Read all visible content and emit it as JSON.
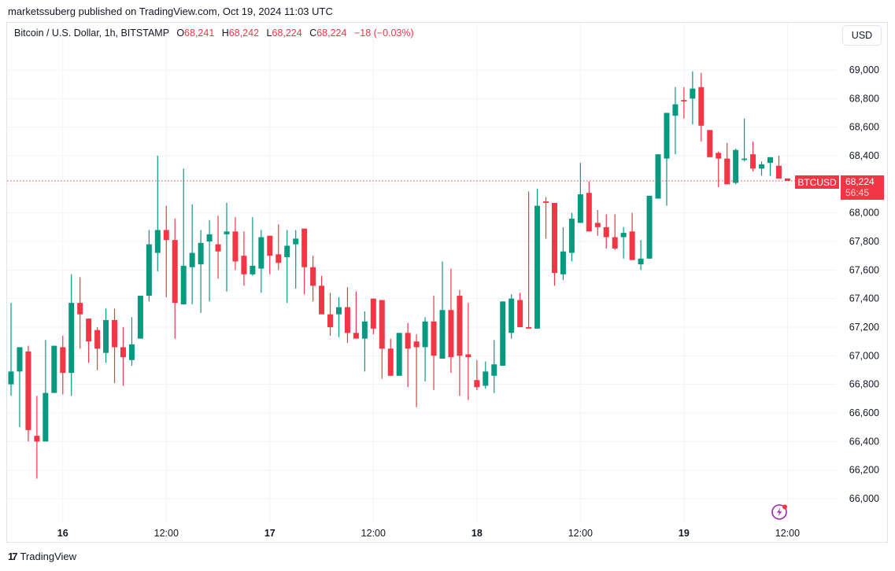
{
  "header": {
    "published": "marketssuberg published on TradingView.com, Oct 19, 2024 11:03 UTC"
  },
  "legend": {
    "symbol": "Bitcoin / U.S. Dollar, 1h, BITSTAMP",
    "o_label": "O",
    "o": "68,241",
    "h_label": "H",
    "h": "68,242",
    "l_label": "L",
    "l": "68,224",
    "c_label": "C",
    "c": "68,224",
    "change": "−18 (−0.03%)"
  },
  "currency_button": "USD",
  "last_price": {
    "symbol_tag": "BTCUSD",
    "price": "68,224",
    "countdown": "56:45"
  },
  "footer": {
    "brand": "TradingView",
    "logo_glyph": "17"
  },
  "colors": {
    "up": "#089981",
    "down": "#f23645",
    "grid": "#f0f3fa",
    "last_line": "#f23645",
    "events_icon": "#9c27b0"
  },
  "chart_data": {
    "type": "candlestick",
    "title": "Bitcoin / U.S. Dollar, 1h, BITSTAMP",
    "xlabel": "",
    "ylabel": "USD",
    "ylim": [
      65800,
      69100
    ],
    "y_ticks": [
      "69,000",
      "68,800",
      "68,600",
      "68,400",
      "68,200",
      "68,000",
      "67,800",
      "67,600",
      "67,400",
      "67,200",
      "67,000",
      "66,800",
      "66,600",
      "66,400",
      "66,200",
      "66,000"
    ],
    "x_ticks": [
      {
        "label": "16",
        "bold": true,
        "index": 6
      },
      {
        "label": "12:00",
        "bold": false,
        "index": 18
      },
      {
        "label": "17",
        "bold": true,
        "index": 30
      },
      {
        "label": "12:00",
        "bold": false,
        "index": 42
      },
      {
        "label": "18",
        "bold": true,
        "index": 54
      },
      {
        "label": "12:00",
        "bold": false,
        "index": 66
      },
      {
        "label": "19",
        "bold": true,
        "index": 78
      },
      {
        "label": "12:00",
        "bold": false,
        "index": 90
      }
    ],
    "grid": true,
    "last_price": 68224,
    "ohlc_columns": [
      "open",
      "high",
      "low",
      "close"
    ],
    "candles": [
      [
        66800,
        67370,
        66720,
        66890
      ],
      [
        66890,
        67060,
        66500,
        67060
      ],
      [
        67030,
        67070,
        66400,
        66480
      ],
      [
        66440,
        66720,
        66140,
        66400
      ],
      [
        66400,
        67110,
        66400,
        66740
      ],
      [
        66740,
        67070,
        66750,
        67070
      ],
      [
        67060,
        67140,
        66730,
        66880
      ],
      [
        66880,
        67570,
        66720,
        67370
      ],
      [
        67370,
        67550,
        67050,
        67290
      ],
      [
        67260,
        67230,
        66950,
        67100
      ],
      [
        67180,
        67200,
        66900,
        67050
      ],
      [
        67020,
        67330,
        66950,
        67250
      ],
      [
        67250,
        67330,
        66810,
        67060
      ],
      [
        67060,
        67200,
        66790,
        66990
      ],
      [
        66970,
        67270,
        66930,
        67080
      ],
      [
        67120,
        67420,
        67120,
        67420
      ],
      [
        67420,
        67880,
        67380,
        67780
      ],
      [
        67720,
        68400,
        67590,
        67880
      ],
      [
        67880,
        68050,
        67410,
        67810
      ],
      [
        67810,
        67960,
        67120,
        67370
      ],
      [
        67360,
        68310,
        67360,
        67630
      ],
      [
        67620,
        68060,
        67360,
        67720
      ],
      [
        67640,
        67880,
        67300,
        67790
      ],
      [
        67800,
        67950,
        67380,
        67850
      ],
      [
        67780,
        67980,
        67540,
        67730
      ],
      [
        67850,
        68070,
        67450,
        67870
      ],
      [
        67870,
        67970,
        67600,
        67660
      ],
      [
        67700,
        67870,
        67490,
        67570
      ],
      [
        67570,
        67970,
        67560,
        67630
      ],
      [
        67610,
        67880,
        67440,
        67830
      ],
      [
        67840,
        67840,
        67570,
        67700
      ],
      [
        67710,
        67920,
        67600,
        67650
      ],
      [
        67690,
        67880,
        67370,
        67770
      ],
      [
        67780,
        67880,
        67470,
        67820
      ],
      [
        67890,
        67890,
        67430,
        67620
      ],
      [
        67620,
        67700,
        67380,
        67490
      ],
      [
        67490,
        67560,
        67330,
        67290
      ],
      [
        67290,
        67440,
        67140,
        67200
      ],
      [
        67290,
        67410,
        67130,
        67340
      ],
      [
        67340,
        67480,
        67090,
        67160
      ],
      [
        67160,
        67450,
        67130,
        67120
      ],
      [
        67120,
        67310,
        66890,
        67240
      ],
      [
        67400,
        67400,
        67150,
        67190
      ],
      [
        67390,
        67390,
        66840,
        67050
      ],
      [
        67050,
        67120,
        66860,
        66860
      ],
      [
        66860,
        67160,
        66860,
        67160
      ],
      [
        67160,
        67230,
        66780,
        67050
      ],
      [
        67100,
        67150,
        66640,
        67060
      ],
      [
        67060,
        67270,
        66820,
        67240
      ],
      [
        67240,
        67420,
        66760,
        67000
      ],
      [
        66980,
        67660,
        66980,
        67320
      ],
      [
        67320,
        67610,
        66880,
        66990
      ],
      [
        67420,
        67460,
        66720,
        67000
      ],
      [
        67010,
        67370,
        66690,
        66990
      ],
      [
        66830,
        66970,
        66760,
        66780
      ],
      [
        66790,
        66960,
        66770,
        66890
      ],
      [
        66860,
        67110,
        66740,
        66940
      ],
      [
        66930,
        67260,
        66930,
        67380
      ],
      [
        67160,
        67430,
        67120,
        67400
      ],
      [
        67390,
        67440,
        67270,
        67200
      ],
      [
        67200,
        68150,
        67200,
        67190
      ],
      [
        67190,
        68170,
        67190,
        68050
      ],
      [
        68080,
        68110,
        67820,
        68070
      ],
      [
        68070,
        68070,
        67490,
        67580
      ],
      [
        67570,
        67900,
        67530,
        67730
      ],
      [
        67720,
        68000,
        67660,
        67960
      ],
      [
        67930,
        68350,
        67970,
        68130
      ],
      [
        68140,
        68220,
        67950,
        67870
      ],
      [
        67930,
        68020,
        67840,
        67900
      ],
      [
        67900,
        67990,
        67750,
        67830
      ],
      [
        67830,
        67990,
        67740,
        67750
      ],
      [
        67830,
        67900,
        67680,
        67860
      ],
      [
        67870,
        68000,
        67760,
        67670
      ],
      [
        67640,
        67810,
        67600,
        67680
      ],
      [
        67680,
        67700,
        68140,
        68120
      ],
      [
        68100,
        68390,
        68220,
        68410
      ],
      [
        68380,
        68640,
        68050,
        68700
      ],
      [
        68680,
        68880,
        68410,
        68760
      ],
      [
        68790,
        68880,
        68660,
        68780
      ],
      [
        68800,
        68990,
        68620,
        68870
      ],
      [
        68880,
        68980,
        68500,
        68610
      ],
      [
        68580,
        68500,
        68420,
        68390
      ],
      [
        68420,
        68430,
        68180,
        68380
      ],
      [
        68380,
        68490,
        68200,
        68200
      ],
      [
        68210,
        68450,
        68200,
        68440
      ],
      [
        68370,
        68660,
        68360,
        68380
      ],
      [
        68410,
        68500,
        68290,
        68310
      ],
      [
        68310,
        68360,
        68260,
        68340
      ],
      [
        68350,
        68390,
        68260,
        68390
      ],
      [
        68330,
        68400,
        68270,
        68240
      ],
      [
        68241,
        68242,
        68224,
        68224
      ]
    ]
  }
}
